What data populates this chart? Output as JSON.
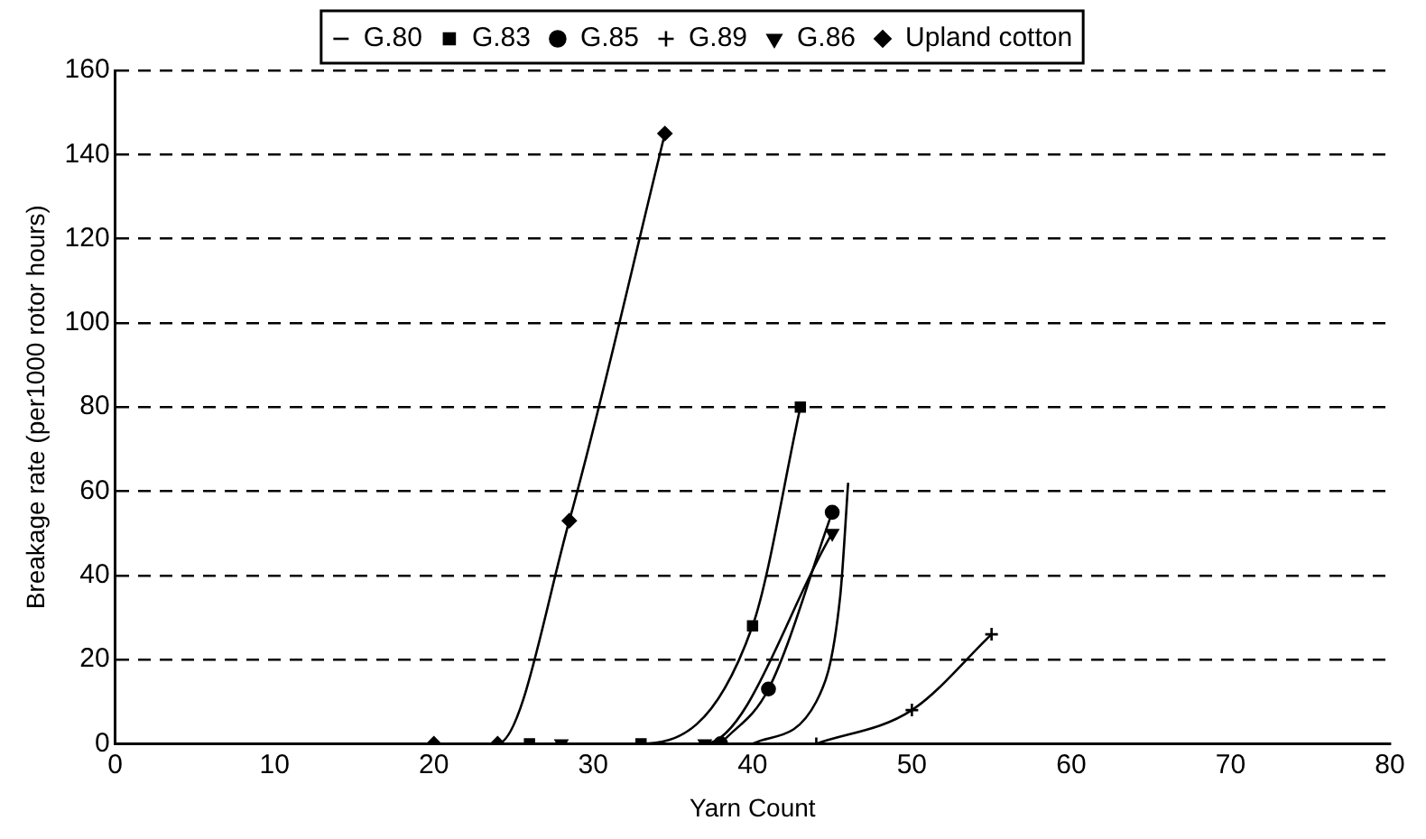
{
  "chart_data": {
    "type": "line",
    "xlabel": "Yarn Count",
    "ylabel": "Breakage rate (per1000 rotor hours)",
    "xlim": [
      0,
      80
    ],
    "xticks": [
      0,
      10,
      20,
      30,
      40,
      50,
      60,
      70,
      80
    ],
    "ylim": [
      0,
      160
    ],
    "yticks": [
      0,
      20,
      40,
      60,
      80,
      100,
      120,
      140,
      160
    ],
    "grid": "y",
    "legend": "top",
    "line_style": "solid",
    "series": [
      {
        "name": "G.80",
        "color": "#000000",
        "marker": "none",
        "x": [
          40,
          44,
          45.5,
          46
        ],
        "values": [
          0,
          10,
          35,
          62
        ]
      },
      {
        "name": "G.83",
        "color": "#000000",
        "marker": "square",
        "x": [
          26,
          33,
          40,
          43
        ],
        "values": [
          0,
          0,
          28,
          80
        ]
      },
      {
        "name": "G.85",
        "color": "#000000",
        "marker": "circle",
        "x": [
          38,
          41,
          45
        ],
        "values": [
          0,
          13,
          55
        ]
      },
      {
        "name": "G.89",
        "color": "#000000",
        "marker": "cross",
        "x": [
          44,
          50,
          55
        ],
        "values": [
          0,
          8,
          26
        ]
      },
      {
        "name": "G.86",
        "color": "#000000",
        "marker": "triangle",
        "x": [
          28,
          37,
          45
        ],
        "values": [
          0,
          0,
          50
        ]
      },
      {
        "name": "Upland cotton",
        "color": "#000000",
        "marker": "diamond",
        "x": [
          20,
          24,
          28.5,
          34.5
        ],
        "values": [
          0,
          0,
          53,
          145
        ]
      }
    ]
  }
}
